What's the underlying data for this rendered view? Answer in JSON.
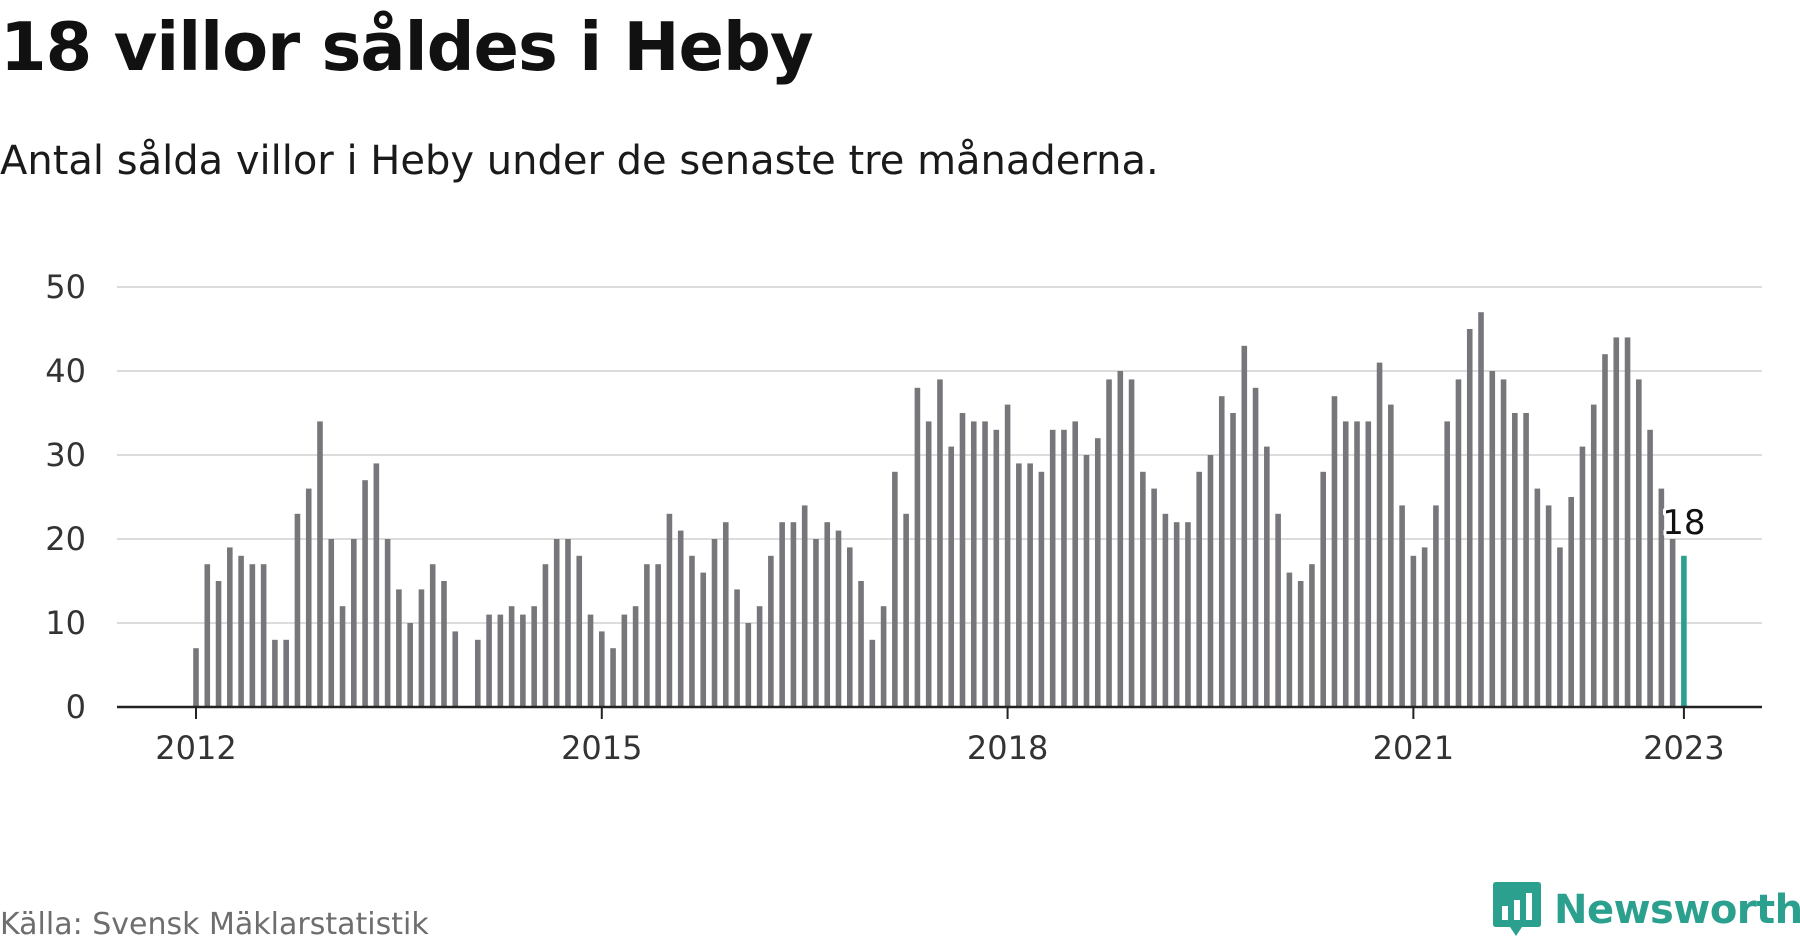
{
  "title": "18 villor såldes i Heby",
  "subtitle": "Antal sålda villor i Heby under de senaste tre månaderna.",
  "source": "Källa: Svensk Mäklarstatistik",
  "brand": {
    "name": "Newsworthy",
    "icon": "newsworthy-logo-icon",
    "color": "#2ba08f"
  },
  "chart_data": {
    "type": "bar",
    "title": "18 villor såldes i Heby",
    "subtitle": "Antal sålda villor i Heby under de senaste tre månaderna.",
    "xlabel": "",
    "ylabel": "",
    "ylim": [
      0,
      50
    ],
    "yticks": [
      0,
      10,
      20,
      30,
      40,
      50
    ],
    "xticks": [
      "2012",
      "2015",
      "2018",
      "2021",
      "2023"
    ],
    "grid": true,
    "bar_color": "#77777b",
    "highlight_color": "#2ba08f",
    "highlight_label": "18",
    "x": [
      "2012-01",
      "2012-02",
      "2012-03",
      "2012-04",
      "2012-05",
      "2012-06",
      "2012-07",
      "2012-08",
      "2012-09",
      "2012-10",
      "2012-11",
      "2012-12",
      "2013-01",
      "2013-02",
      "2013-03",
      "2013-04",
      "2013-05",
      "2013-06",
      "2013-07",
      "2013-08",
      "2013-09",
      "2013-10",
      "2013-11",
      "2013-12",
      "2014-01",
      "2014-02",
      "2014-03",
      "2014-04",
      "2014-05",
      "2014-06",
      "2014-07",
      "2014-08",
      "2014-09",
      "2014-10",
      "2014-11",
      "2014-12",
      "2015-01",
      "2015-02",
      "2015-03",
      "2015-04",
      "2015-05",
      "2015-06",
      "2015-07",
      "2015-08",
      "2015-09",
      "2015-10",
      "2015-11",
      "2015-12",
      "2016-01",
      "2016-02",
      "2016-03",
      "2016-04",
      "2016-05",
      "2016-06",
      "2016-07",
      "2016-08",
      "2016-09",
      "2016-10",
      "2016-11",
      "2016-12",
      "2017-01",
      "2017-02",
      "2017-03",
      "2017-04",
      "2017-05",
      "2017-06",
      "2017-07",
      "2017-08",
      "2017-09",
      "2017-10",
      "2017-11",
      "2017-12",
      "2018-01",
      "2018-02",
      "2018-03",
      "2018-04",
      "2018-05",
      "2018-06",
      "2018-07",
      "2018-08",
      "2018-09",
      "2018-10",
      "2018-11",
      "2018-12",
      "2019-01",
      "2019-02",
      "2019-03",
      "2019-04",
      "2019-05",
      "2019-06",
      "2019-07",
      "2019-08",
      "2019-09",
      "2019-10",
      "2019-11",
      "2019-12",
      "2020-01",
      "2020-02",
      "2020-03",
      "2020-04",
      "2020-05",
      "2020-06",
      "2020-07",
      "2020-08",
      "2020-09",
      "2020-10",
      "2020-11",
      "2020-12",
      "2021-01",
      "2021-02",
      "2021-03",
      "2021-04",
      "2021-05",
      "2021-06",
      "2021-07",
      "2021-08",
      "2021-09",
      "2021-10",
      "2021-11",
      "2021-12",
      "2022-01",
      "2022-02",
      "2022-03",
      "2022-04",
      "2022-05",
      "2022-06",
      "2022-07",
      "2022-08",
      "2022-09",
      "2022-10",
      "2022-11",
      "2022-12",
      "2023-01"
    ],
    "values": [
      7,
      17,
      15,
      19,
      18,
      17,
      17,
      8,
      8,
      23,
      26,
      34,
      20,
      12,
      20,
      27,
      29,
      20,
      14,
      10,
      14,
      17,
      15,
      9,
      null,
      8,
      11,
      11,
      12,
      11,
      12,
      17,
      20,
      20,
      18,
      11,
      9,
      7,
      11,
      12,
      17,
      17,
      23,
      21,
      18,
      16,
      20,
      22,
      14,
      10,
      12,
      18,
      22,
      22,
      24,
      20,
      22,
      21,
      19,
      15,
      8,
      12,
      28,
      23,
      38,
      34,
      39,
      31,
      35,
      34,
      34,
      33,
      36,
      29,
      29,
      28,
      33,
      33,
      34,
      30,
      32,
      39,
      40,
      39,
      28,
      26,
      23,
      22,
      22,
      28,
      30,
      37,
      35,
      43,
      38,
      31,
      23,
      16,
      15,
      17,
      28,
      37,
      34,
      34,
      34,
      41,
      36,
      24,
      18,
      19,
      24,
      34,
      39,
      45,
      47,
      40,
      39,
      35,
      35,
      26,
      24,
      19,
      25,
      31,
      36,
      42,
      44,
      44,
      39,
      33,
      26,
      20,
      18
    ]
  }
}
